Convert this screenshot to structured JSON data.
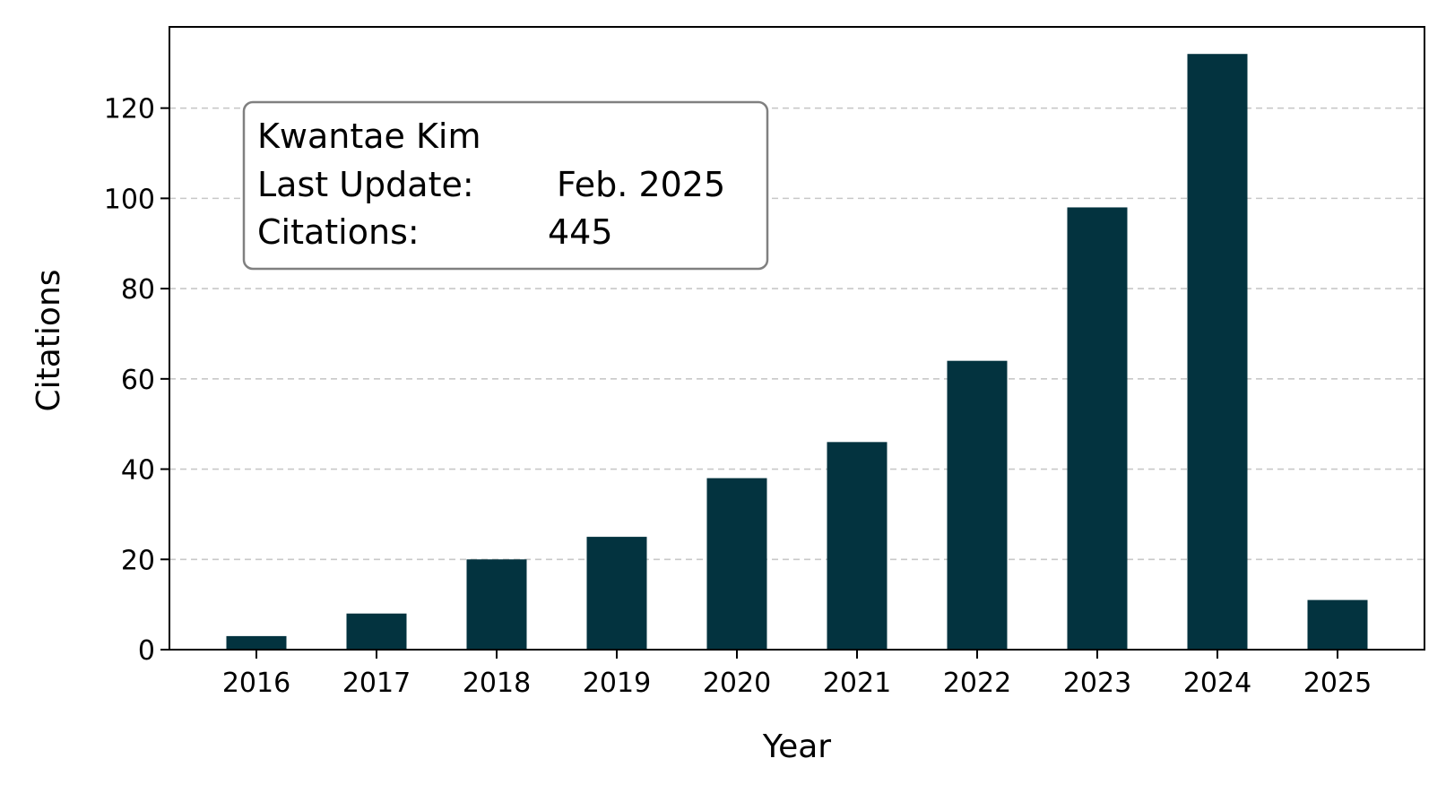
{
  "chart_data": {
    "type": "bar",
    "categories": [
      "2016",
      "2017",
      "2018",
      "2019",
      "2020",
      "2021",
      "2022",
      "2023",
      "2024",
      "2025"
    ],
    "values": [
      3,
      8,
      20,
      25,
      38,
      46,
      64,
      98,
      132,
      11
    ],
    "xlabel": "Year",
    "ylabel": "Citations",
    "ylim": [
      0,
      138
    ],
    "yticks": [
      0,
      20,
      40,
      60,
      80,
      100,
      120
    ],
    "bar_color": "#03333f",
    "grid": "y-dashed",
    "info_box": {
      "name": "Kwantae Kim",
      "update_label": "Last Update:",
      "update_value": "Feb. 2025",
      "citations_label": "Citations:",
      "citations_value": "445"
    }
  }
}
